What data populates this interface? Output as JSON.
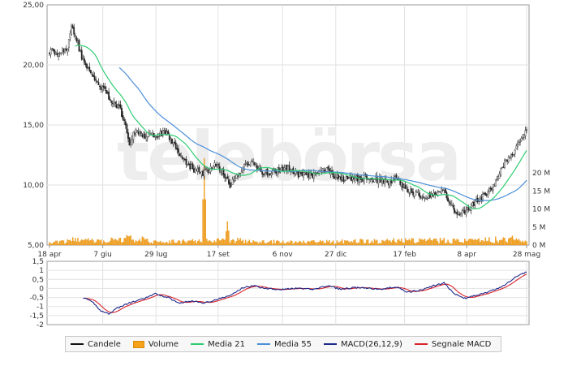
{
  "chart_data": [
    {
      "type": "candlestick",
      "panel": "price",
      "price_axis": {
        "ticks": [
          "25,00",
          "20,00",
          "15,00",
          "10,00",
          "5,00"
        ],
        "ylim": [
          5,
          25
        ]
      },
      "volume_axis": {
        "ticks": [
          "20 M",
          "15 M",
          "10 M",
          "5 M",
          "0 M"
        ],
        "ylim": [
          0,
          25
        ]
      },
      "x_ticks": [
        "18 apr",
        "7 giu",
        "29 lug",
        "17 set",
        "6 nov",
        "27 dic",
        "17 feb",
        "8 apr",
        "28 mag"
      ],
      "grid": true,
      "watermark": "telebörsa",
      "close_anchors": [
        [
          0,
          21.2
        ],
        [
          8,
          21.0
        ],
        [
          14,
          21.5
        ],
        [
          17,
          23.0
        ],
        [
          20,
          22.5
        ],
        [
          24,
          21.0
        ],
        [
          27,
          20.0
        ],
        [
          32,
          19.3
        ],
        [
          40,
          18.2
        ],
        [
          48,
          17.0
        ],
        [
          54,
          16.5
        ],
        [
          58,
          15.2
        ],
        [
          62,
          13.5
        ],
        [
          66,
          14.5
        ],
        [
          74,
          14.0
        ],
        [
          82,
          14.2
        ],
        [
          90,
          14.3
        ],
        [
          96,
          13.5
        ],
        [
          104,
          12.0
        ],
        [
          112,
          11.3
        ],
        [
          120,
          11.0
        ],
        [
          128,
          11.6
        ],
        [
          134,
          11.2
        ],
        [
          140,
          10.0
        ],
        [
          146,
          10.8
        ],
        [
          152,
          11.6
        ],
        [
          158,
          11.8
        ],
        [
          166,
          11.0
        ],
        [
          176,
          11.2
        ],
        [
          184,
          11.5
        ],
        [
          192,
          10.9
        ],
        [
          200,
          10.7
        ],
        [
          208,
          10.9
        ],
        [
          216,
          11.3
        ],
        [
          224,
          10.5
        ],
        [
          232,
          10.6
        ],
        [
          240,
          10.5
        ],
        [
          248,
          10.6
        ],
        [
          256,
          10.4
        ],
        [
          264,
          10.2
        ],
        [
          270,
          10.6
        ],
        [
          276,
          9.6
        ],
        [
          284,
          9.3
        ],
        [
          292,
          9.0
        ],
        [
          300,
          9.2
        ],
        [
          306,
          9.6
        ],
        [
          310,
          8.6
        ],
        [
          314,
          7.8
        ],
        [
          320,
          7.7
        ],
        [
          328,
          8.3
        ],
        [
          336,
          9.0
        ],
        [
          344,
          9.9
        ],
        [
          350,
          11.2
        ],
        [
          356,
          12.4
        ],
        [
          362,
          13.0
        ],
        [
          366,
          14.0
        ],
        [
          370,
          14.8
        ]
      ],
      "volume_anchors": [
        [
          0,
          0.5
        ],
        [
          20,
          1.4
        ],
        [
          40,
          1.0
        ],
        [
          60,
          2.0
        ],
        [
          80,
          1.0
        ],
        [
          100,
          0.9
        ],
        [
          118,
          1.2
        ],
        [
          120,
          24.0
        ],
        [
          122,
          1.3
        ],
        [
          136,
          1.1
        ],
        [
          138,
          6.5
        ],
        [
          140,
          1.4
        ],
        [
          160,
          0.9
        ],
        [
          200,
          0.8
        ],
        [
          240,
          1.0
        ],
        [
          280,
          1.2
        ],
        [
          300,
          1.3
        ],
        [
          320,
          1.1
        ],
        [
          340,
          1.3
        ],
        [
          360,
          1.6
        ],
        [
          370,
          1.0
        ]
      ],
      "series": [
        {
          "name": "Candele",
          "color": "#222222",
          "values_ref": "close_anchors"
        },
        {
          "name": "Volume",
          "color": "#f7a21b",
          "values_ref": "volume_anchors"
        },
        {
          "name": "Media 21",
          "color": "#2ecc71",
          "period": 21
        },
        {
          "name": "Media 55",
          "color": "#4a8fd8",
          "period": 55
        }
      ]
    },
    {
      "type": "line",
      "panel": "macd",
      "y_ticks": [
        "1,5",
        "1",
        "0,5",
        "0",
        "-0,5",
        "-1",
        "-1,5",
        "-2"
      ],
      "ylim": [
        -2,
        1.5
      ],
      "macd_anchors": [
        [
          26,
          -0.5
        ],
        [
          34,
          -0.8
        ],
        [
          40,
          -1.25
        ],
        [
          46,
          -1.4
        ],
        [
          52,
          -1.1
        ],
        [
          62,
          -0.8
        ],
        [
          72,
          -0.6
        ],
        [
          82,
          -0.3
        ],
        [
          92,
          -0.5
        ],
        [
          100,
          -0.8
        ],
        [
          110,
          -0.7
        ],
        [
          120,
          -0.8
        ],
        [
          130,
          -0.6
        ],
        [
          140,
          -0.4
        ],
        [
          150,
          0.05
        ],
        [
          158,
          0.15
        ],
        [
          168,
          0.0
        ],
        [
          180,
          -0.05
        ],
        [
          192,
          0.0
        ],
        [
          204,
          -0.05
        ],
        [
          216,
          0.15
        ],
        [
          226,
          -0.05
        ],
        [
          236,
          0.05
        ],
        [
          248,
          0.0
        ],
        [
          258,
          -0.05
        ],
        [
          268,
          0.1
        ],
        [
          278,
          -0.2
        ],
        [
          288,
          -0.1
        ],
        [
          298,
          0.15
        ],
        [
          306,
          0.3
        ],
        [
          314,
          -0.3
        ],
        [
          322,
          -0.55
        ],
        [
          330,
          -0.4
        ],
        [
          340,
          -0.2
        ],
        [
          350,
          0.05
        ],
        [
          358,
          0.45
        ],
        [
          364,
          0.75
        ],
        [
          370,
          0.9
        ]
      ],
      "series": [
        {
          "name": "MACD(26,12,9)",
          "color": "#1e2a8a",
          "values_ref": "macd_anchors"
        },
        {
          "name": "Segnale MACD",
          "color": "#d8242c",
          "period": 9
        }
      ]
    }
  ],
  "legend": {
    "items": [
      {
        "label": "Candele",
        "color": "#111111",
        "kind": "line"
      },
      {
        "label": "Volume",
        "color": "#f7a21b",
        "kind": "box"
      },
      {
        "label": "Media 21",
        "color": "#2ecc71",
        "kind": "line"
      },
      {
        "label": "Media 55",
        "color": "#4a8fd8",
        "kind": "line"
      },
      {
        "label": "MACD(26,12,9)",
        "color": "#1e2a8a",
        "kind": "line"
      },
      {
        "label": "Segnale MACD",
        "color": "#d8242c",
        "kind": "line"
      }
    ]
  }
}
